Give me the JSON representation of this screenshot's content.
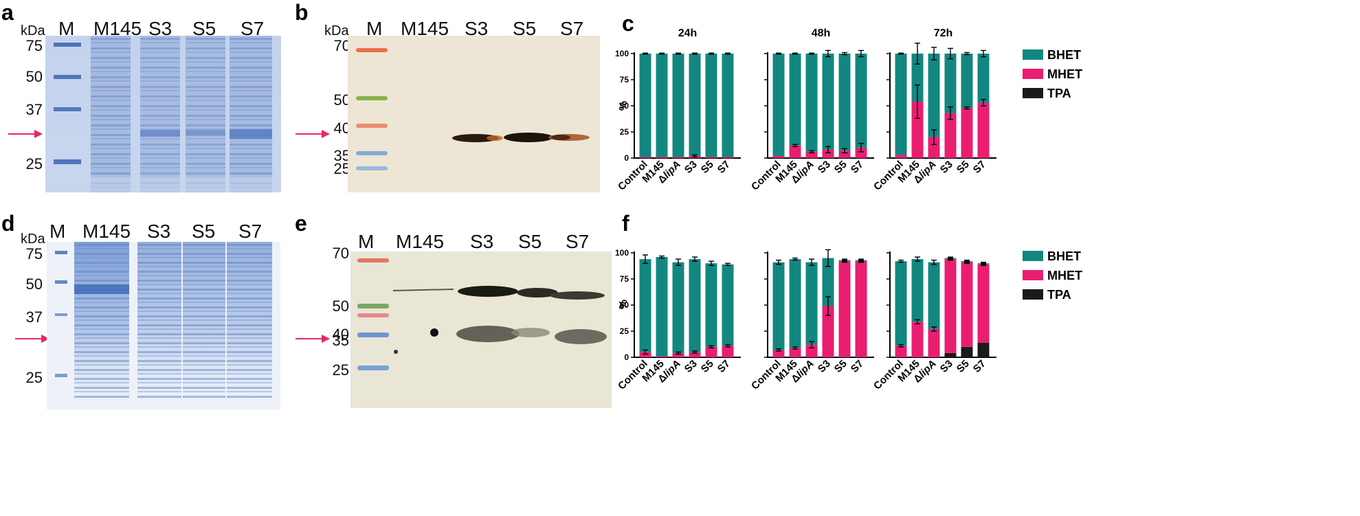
{
  "panels": {
    "a": {
      "label": "a",
      "kda": "kDa",
      "lanes": [
        "M",
        "M145",
        "S3",
        "S5",
        "S7"
      ],
      "markers": [
        "75",
        "50",
        "37",
        "25"
      ]
    },
    "b": {
      "label": "b",
      "kda": "kDa",
      "lanes": [
        "M",
        "M145",
        "S3",
        "S5",
        "S7"
      ],
      "markers": [
        "70",
        "50",
        "40",
        "35",
        "25"
      ]
    },
    "c": {
      "label": "c"
    },
    "d": {
      "label": "d",
      "kda": "kDa",
      "lanes": [
        "M",
        "M145",
        "S3",
        "S5",
        "S7"
      ],
      "markers": [
        "75",
        "50",
        "37",
        "25"
      ]
    },
    "e": {
      "label": "e",
      "lanes": [
        "M",
        "M145",
        "S3",
        "S5",
        "S7"
      ],
      "markers": [
        "70",
        "50",
        "40",
        "35",
        "25"
      ]
    },
    "f": {
      "label": "f"
    }
  },
  "colors": {
    "BHET": "#128780",
    "MHET": "#e91e71",
    "TPA": "#1a1a1a",
    "arrow": "#e8256e"
  },
  "chart_data": [
    {
      "panel": "c",
      "type": "bar",
      "stacked": true,
      "ylabel": "%",
      "ylim": [
        0,
        100
      ],
      "yticks": [
        0,
        25,
        50,
        75,
        100
      ],
      "categories": [
        "Control",
        "M145",
        "ΔlipA",
        "S3",
        "S5",
        "S7"
      ],
      "legend": [
        "BHET",
        "MHET",
        "TPA"
      ],
      "subplots": [
        {
          "title": "24h",
          "series": [
            {
              "name": "TPA",
              "values": [
                0,
                0,
                0,
                0,
                0,
                0
              ]
            },
            {
              "name": "MHET",
              "values": [
                1,
                1,
                1,
                2,
                1,
                1
              ]
            },
            {
              "name": "BHET",
              "values": [
                99,
                99,
                99,
                98,
                99,
                99
              ]
            }
          ],
          "mhet_err": [
            0,
            0,
            0,
            1,
            0,
            0
          ],
          "total_err": [
            0.5,
            0.5,
            0.5,
            0.5,
            0.5,
            0.5
          ]
        },
        {
          "title": "48h",
          "series": [
            {
              "name": "TPA",
              "values": [
                0,
                0,
                0,
                0,
                0,
                0
              ]
            },
            {
              "name": "MHET",
              "values": [
                2,
                12,
                6,
                8,
                7,
                10
              ]
            },
            {
              "name": "BHET",
              "values": [
                98,
                88,
                94,
                92,
                93,
                90
              ]
            }
          ],
          "mhet_err": [
            0,
            1,
            1,
            3,
            2,
            4
          ],
          "total_err": [
            0.5,
            0.5,
            0.5,
            3,
            1,
            3
          ]
        },
        {
          "title": "72h",
          "series": [
            {
              "name": "TPA",
              "values": [
                0,
                0,
                0,
                0,
                0,
                0
              ]
            },
            {
              "name": "MHET",
              "values": [
                3,
                54,
                20,
                43,
                48,
                53
              ]
            },
            {
              "name": "BHET",
              "values": [
                97,
                46,
                80,
                57,
                52,
                47
              ]
            }
          ],
          "mhet_err": [
            0,
            16,
            7,
            6,
            1,
            3
          ],
          "total_err": [
            0.5,
            10,
            6,
            5,
            1,
            3
          ]
        }
      ]
    },
    {
      "panel": "f",
      "type": "bar",
      "stacked": true,
      "ylabel": "%",
      "ylim": [
        0,
        100
      ],
      "yticks": [
        0,
        25,
        50,
        75,
        100
      ],
      "categories": [
        "Control",
        "M145",
        "ΔlipA",
        "S3",
        "S5",
        "S7"
      ],
      "legend": [
        "BHET",
        "MHET",
        "TPA"
      ],
      "subplots": [
        {
          "title": "",
          "series": [
            {
              "name": "TPA",
              "values": [
                0,
                0,
                0,
                0,
                0,
                0
              ]
            },
            {
              "name": "MHET",
              "values": [
                5,
                1,
                4,
                5,
                10,
                11
              ]
            },
            {
              "name": "BHET",
              "values": [
                89,
                95,
                87,
                89,
                80,
                78
              ]
            }
          ],
          "mhet_err": [
            2,
            0,
            1,
            1,
            1,
            1
          ],
          "total_err": [
            4,
            1,
            3,
            2,
            2,
            1
          ]
        },
        {
          "title": "",
          "series": [
            {
              "name": "TPA",
              "values": [
                0,
                0,
                0,
                0,
                0,
                0
              ]
            },
            {
              "name": "MHET",
              "values": [
                7,
                9,
                12,
                49,
                92,
                92
              ]
            },
            {
              "name": "BHET",
              "values": [
                84,
                85,
                79,
                46,
                1,
                1
              ]
            }
          ],
          "mhet_err": [
            1,
            1,
            3,
            9,
            1,
            1
          ],
          "total_err": [
            2,
            1,
            3,
            8,
            1,
            1
          ]
        },
        {
          "title": "",
          "series": [
            {
              "name": "TPA",
              "values": [
                0,
                0,
                0,
                4,
                10,
                14
              ]
            },
            {
              "name": "MHET",
              "values": [
                11,
                34,
                27,
                90,
                81,
                75
              ]
            },
            {
              "name": "BHET",
              "values": [
                81,
                60,
                64,
                1,
                1,
                1
              ]
            }
          ],
          "mhet_err": [
            1,
            2,
            2,
            1,
            1,
            1
          ],
          "total_err": [
            1,
            2,
            2,
            1,
            1,
            1
          ]
        }
      ]
    }
  ]
}
